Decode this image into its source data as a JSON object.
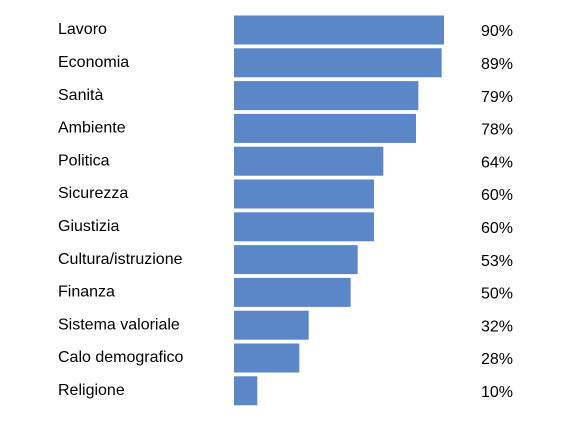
{
  "chart_data": {
    "type": "hbar",
    "categories": [
      "Lavoro",
      "Economia",
      "Sanità",
      "Ambiente",
      "Politica",
      "Sicurezza",
      "Giustizia",
      "Cultura/istruzione",
      "Finanza",
      "Sistema valoriale",
      "Calo demografico",
      "Religione"
    ],
    "values": [
      90,
      89,
      79,
      78,
      64,
      60,
      60,
      53,
      50,
      32,
      28,
      10
    ],
    "value_labels": [
      "90%",
      "89%",
      "79%",
      "78%",
      "64%",
      "60%",
      "60%",
      "53%",
      "50%",
      "32%",
      "28%",
      "10%"
    ],
    "color": "#5b87c9"
  }
}
